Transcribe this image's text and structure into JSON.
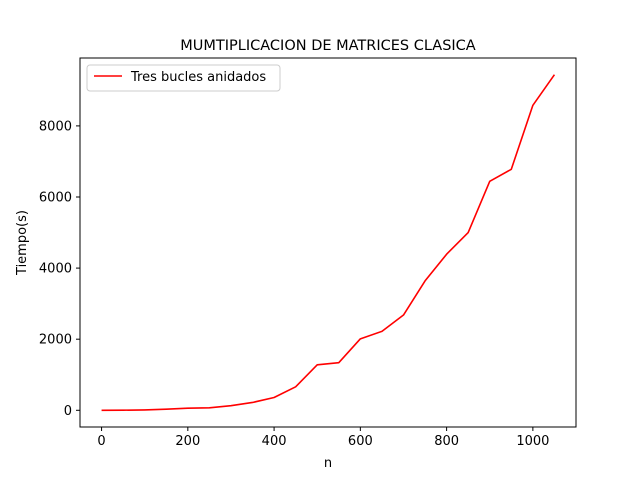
{
  "chart_data": {
    "type": "line",
    "title": "MUMTIPLICACION DE MATRICES CLASICA",
    "xlabel": "n",
    "ylabel": "Tiempo(s)",
    "xlim": [
      -50,
      1100
    ],
    "ylim": [
      -470,
      9910
    ],
    "xticks": [
      0,
      200,
      400,
      600,
      800,
      1000
    ],
    "yticks": [
      0,
      2000,
      4000,
      6000,
      8000
    ],
    "grid": false,
    "legend": {
      "position": "top-left"
    },
    "series": [
      {
        "name": "Tres bucles anidados",
        "color": "#ff0000",
        "x": [
          0,
          50,
          100,
          150,
          200,
          250,
          300,
          350,
          400,
          450,
          500,
          550,
          600,
          650,
          700,
          750,
          800,
          850,
          900,
          950,
          1000,
          1050
        ],
        "y": [
          0,
          3,
          10,
          30,
          60,
          70,
          130,
          220,
          360,
          660,
          1280,
          1340,
          2010,
          2220,
          2680,
          3640,
          4390,
          5000,
          6440,
          6780,
          8580,
          9440
        ]
      }
    ]
  }
}
